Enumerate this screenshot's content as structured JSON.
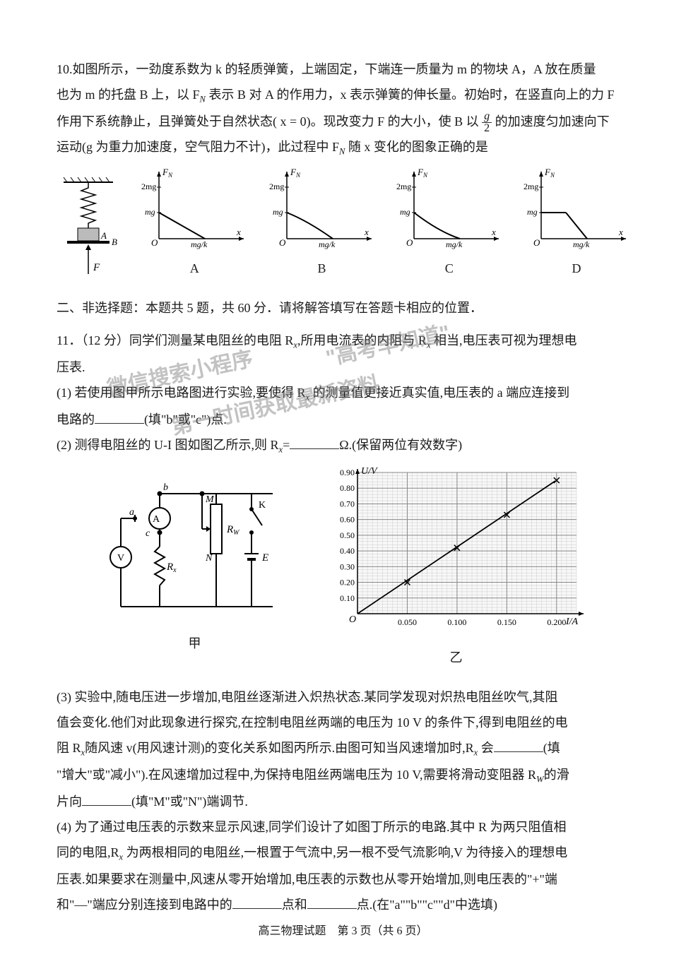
{
  "q10": {
    "text_line1": "10.如图所示，一劲度系数为 k 的轻质弹簧，上端固定，下端连一质量为 m 的物块 A，A 放在质量",
    "text_line2": "也为 m 的托盘 B 上，以 F",
    "text_line2_sub": "N",
    "text_line2b": " 表示 B 对 A 的作用力，x 表示弹簧的伸长量。初始时，在竖直向上的力 F",
    "text_line3a": "作用下系统静止，且弹簧处于自然状态( x = 0)。现改变力 F 的大小，使 B 以 ",
    "frac_num": "g",
    "frac_den": "2",
    "text_line3b": " 的加速度匀加速向下",
    "text_line4a": "运动(g 为重力加速度，空气阻力不计)，此过程中 F",
    "text_line4_sub": "N",
    "text_line4b": " 随 x 变化的图象正确的是",
    "options": [
      "A",
      "B",
      "C",
      "D"
    ],
    "graph": {
      "y_label": "F",
      "y_label_sub": "N",
      "x_label": "x",
      "y_tick_top": "2mg",
      "y_tick_mid": "mg",
      "x_tick": "mg/k",
      "origin": "O",
      "colors": {
        "axis": "#000000",
        "line": "#000000"
      }
    },
    "setup": {
      "label_A": "A",
      "label_B": "B",
      "label_F": "F"
    }
  },
  "section2": {
    "header": "二、非选择题：本题共 5 题，共 60 分．请将解答填写在答题卡相应的位置．"
  },
  "q11": {
    "intro": "11．（12 分）同学们测量某电阻丝的电阻 R",
    "intro_sub": "x",
    "intro_b": ",所用电流表的内阻与 R",
    "intro_sub2": "x",
    "intro_c": " 相当,电压表可视为理想电",
    "intro_d": "压表.",
    "p1_a": "(1) 若使用图甲所示电路图进行实验,要使得 R",
    "p1_sub": "x",
    "p1_b": " 的测量值更接近真实值,电压表的 a 端应连接到",
    "p1_c": "电路的",
    "p1_d": "(填\"b\"或\"c\")点.",
    "p2_a": "(2) 测得电阻丝的 U-I 图如图乙所示,则 R",
    "p2_sub": "x",
    "p2_b": "=",
    "p2_c": "Ω.(保留两位有效数字)",
    "circuit": {
      "labels": {
        "a": "a",
        "b": "b",
        "c": "c",
        "A": "A",
        "V": "V",
        "Rx": "R",
        "Rx_sub": "x",
        "M": "M",
        "N": "N",
        "Rw": "R",
        "Rw_sub": "W",
        "K": "K",
        "E": "E"
      },
      "caption": "甲"
    },
    "graph": {
      "y_label": "U/V",
      "x_label": "I/A",
      "origin": "O",
      "y_ticks": [
        "0.10",
        "0.20",
        "0.30",
        "0.40",
        "0.50",
        "0.60",
        "0.70",
        "0.80",
        "0.90"
      ],
      "x_ticks": [
        "0.050",
        "0.100",
        "0.150",
        "0.200"
      ],
      "caption": "乙",
      "line_color": "#000000",
      "grid_color": "#888888",
      "subgrid_color": "#cccccc",
      "bg": "#f8f8f8",
      "points": [
        {
          "x": 0.05,
          "y": 0.2
        },
        {
          "x": 0.1,
          "y": 0.42
        },
        {
          "x": 0.15,
          "y": 0.63
        },
        {
          "x": 0.2,
          "y": 0.85
        }
      ],
      "xlim": [
        0,
        0.22
      ],
      "ylim": [
        0,
        0.9
      ]
    },
    "p3_a": "(3) 实验中,随电压进一步增加,电阻丝逐渐进入炽热状态.某同学发现对炽热电阻丝吹气,其阻",
    "p3_b": "值会变化.他们对此现象进行探究,在控制电阻丝两端的电压为 10 V 的条件下,得到电阻丝的电",
    "p3_c": "阻 R",
    "p3_c_sub": "x",
    "p3_d": "随风速 v(用风速计测)的变化关系如图丙所示.由图可知当风速增加时,R",
    "p3_d_sub": "x",
    "p3_e": " 会",
    "p3_f": "(填",
    "p3_g": "\"增大\"或\"减小\").在风速增加过程中,为保持电阻丝两端电压为 10 V,需要将滑动变阻器 R",
    "p3_g_sub": "W",
    "p3_h": "的滑",
    "p3_i": "片向",
    "p3_j": "(填\"M\"或\"N\")端调节.",
    "p4_a": "(4) 为了通过电压表的示数来显示风速,同学们设计了如图丁所示的电路.其中 R 为两只阻值相",
    "p4_b": "同的电阻,R",
    "p4_b_sub": "x",
    "p4_c": " 为两根相同的电阻丝,一根置于气流中,另一根不受气流影响,V 为待接入的理想电",
    "p4_d": "压表.如果要求在测量中,风速从零开始增加,电压表的示数也从零开始增加,则电压表的\"+\"端",
    "p4_e": "和\"—\"端应分别连接到电路中的",
    "p4_f": "点和",
    "p4_g": "点.(在\"a\"\"b\"\"c\"\"d\"中选填)"
  },
  "watermarks": {
    "w1": "微信搜索小程序",
    "w2": "\"高考早知道\"",
    "w3": "第一时间获取最新资料"
  },
  "footer": "高三物理试题　第 3 页（共 6 页）"
}
